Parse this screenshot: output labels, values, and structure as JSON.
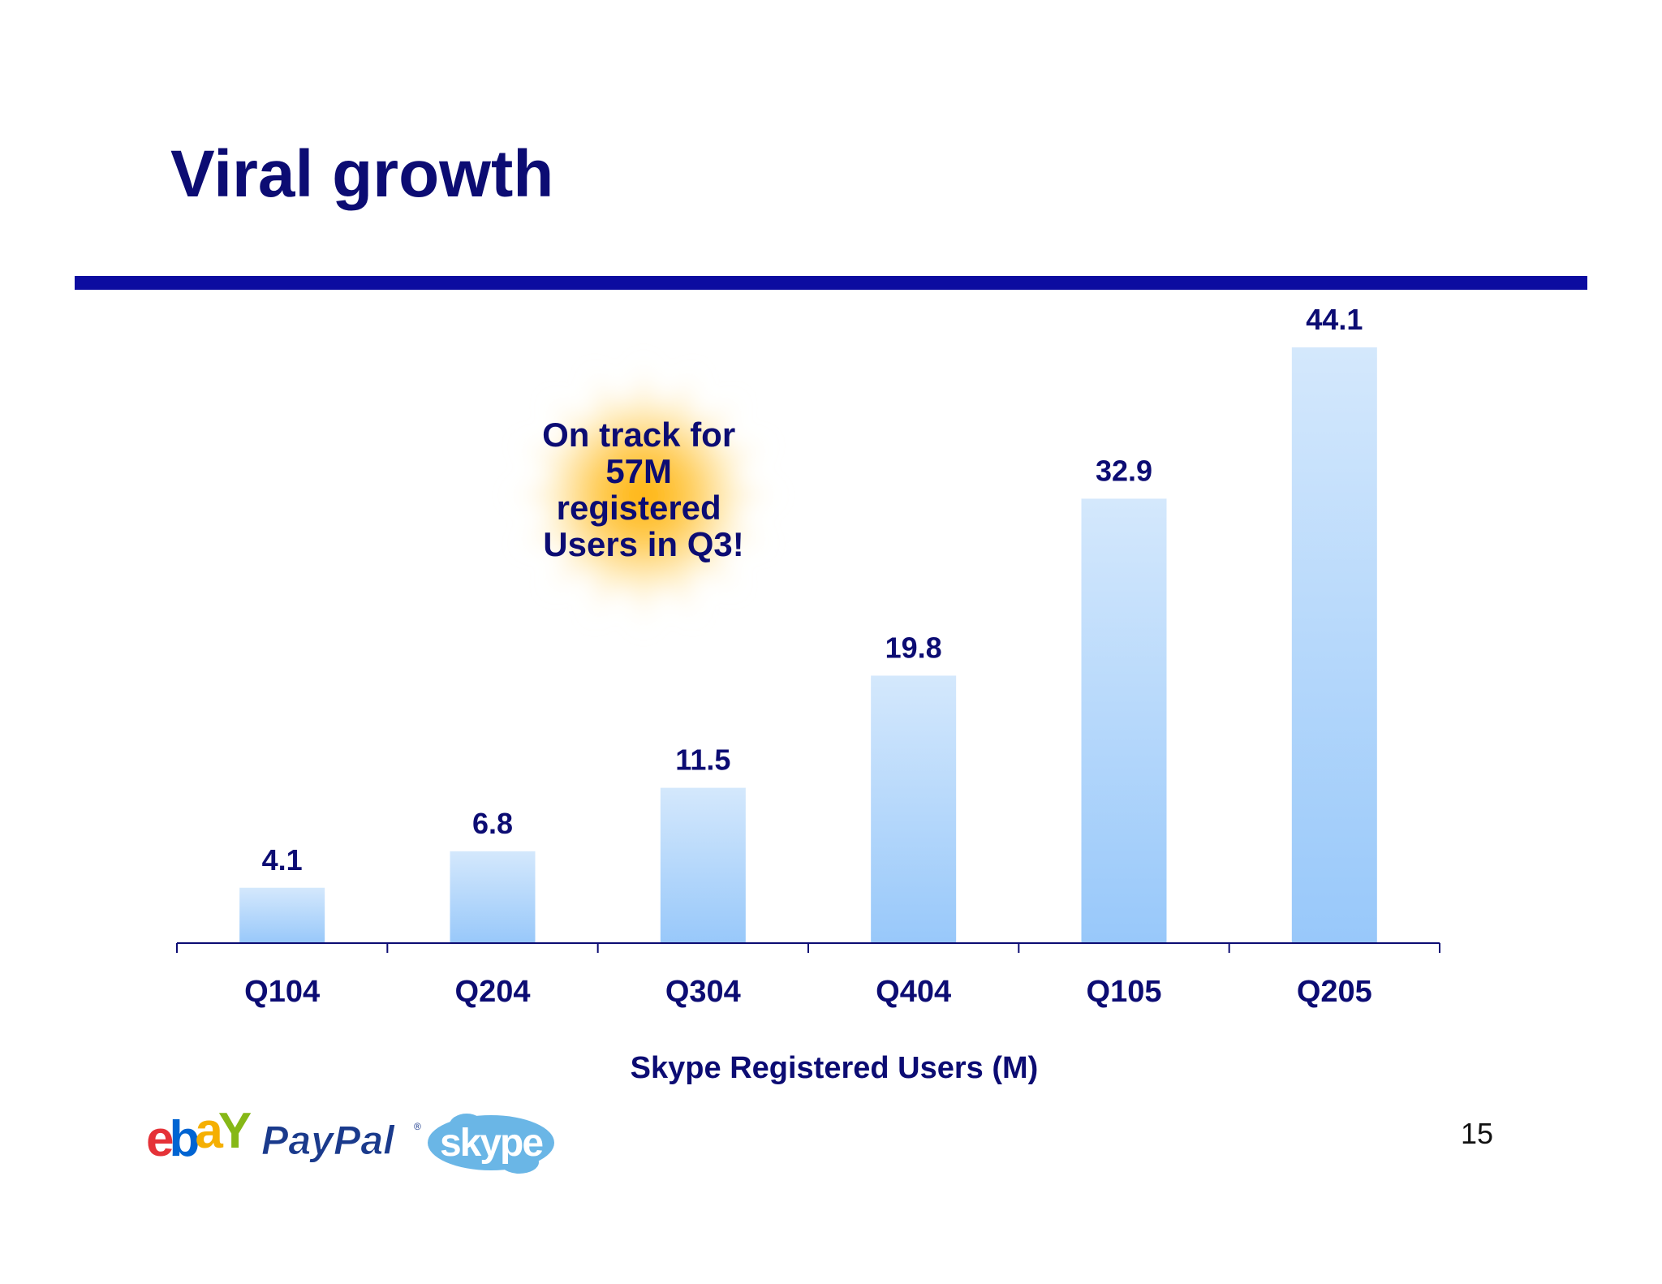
{
  "slide": {
    "title": "Viral growth",
    "page_number": "15"
  },
  "callout": {
    "lines": [
      "On track for",
      "57M",
      "registered",
      "Users in Q3!"
    ]
  },
  "logos": {
    "ebay": "ebaY",
    "paypal": "PayPal",
    "skype": "skype"
  },
  "colors": {
    "title": "#0c0c73",
    "rule": "#0c0ca0",
    "bar_top": "#d4e8fc",
    "bar_bottom": "#98c8fa",
    "axis": "#0c0c73"
  },
  "chart_data": {
    "type": "bar",
    "title": "",
    "xlabel": "Skype Registered Users (M)",
    "ylabel": "",
    "categories": [
      "Q104",
      "Q204",
      "Q304",
      "Q404",
      "Q105",
      "Q205"
    ],
    "values": [
      4.1,
      6.8,
      11.5,
      19.8,
      32.9,
      44.1
    ],
    "value_labels": [
      "4.1",
      "6.8",
      "11.5",
      "19.8",
      "32.9",
      "44.1"
    ],
    "ylim": [
      0,
      44.1
    ],
    "grid": false,
    "legend": "none"
  }
}
